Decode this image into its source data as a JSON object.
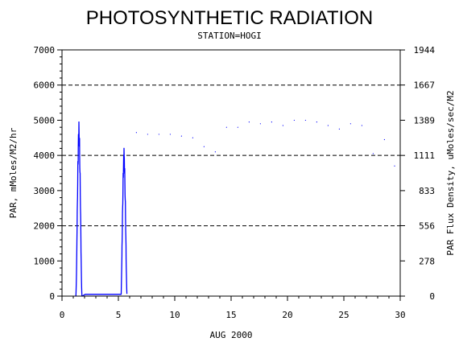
{
  "chart_data": {
    "type": "line",
    "title": "PHOTOSYNTHETIC RADIATION",
    "subtitle": "STATION=HOGI",
    "xlabel": "AUG 2000",
    "ylabel": "PAR, mMoles/M2/hr",
    "ylabel_right": "PAR Flux Density, uMoles/sec/M2",
    "xlim": [
      0,
      30
    ],
    "ylim": [
      0,
      7000
    ],
    "x_ticks": [
      0,
      5,
      10,
      15,
      20,
      25,
      30
    ],
    "x_tick_labels": [
      "0",
      "5",
      "10",
      "15",
      "20",
      "25",
      "30"
    ],
    "y_ticks": [
      0,
      1000,
      2000,
      3000,
      4000,
      5000,
      6000,
      7000
    ],
    "y_tick_labels": [
      "0",
      "1000",
      "2000",
      "3000",
      "4000",
      "5000",
      "6000",
      "7000"
    ],
    "y2_ticks": [
      0,
      278,
      556,
      833,
      1111,
      1389,
      1667,
      1944
    ],
    "y2_tick_labels": [
      "0",
      "278",
      "556",
      "833",
      "1111",
      "1389",
      "1667",
      "1944"
    ],
    "y2_scale": "uMoles/sec/M2 = mMoles/M2/hr / 3.6",
    "reference_lines": [
      2000,
      4000,
      6000
    ],
    "reference_line_style": "dashed",
    "series": [
      {
        "color": "#0000ff",
        "daily_peaks": [
          {
            "day": 1.5,
            "peak": 4950
          },
          {
            "day": 5.5,
            "peak": 4200
          },
          {
            "day": 6.6,
            "peak": 4650
          },
          {
            "day": 7.6,
            "peak": 4600
          },
          {
            "day": 8.6,
            "peak": 4600
          },
          {
            "day": 9.6,
            "peak": 4600
          },
          {
            "day": 10.6,
            "peak": 4550
          },
          {
            "day": 11.6,
            "peak": 4500
          },
          {
            "day": 12.6,
            "peak": 4250
          },
          {
            "day": 13.6,
            "peak": 4100
          },
          {
            "day": 14.6,
            "peak": 4800
          },
          {
            "day": 15.6,
            "peak": 4800
          },
          {
            "day": 16.6,
            "peak": 4950
          },
          {
            "day": 17.6,
            "peak": 4900
          },
          {
            "day": 18.6,
            "peak": 4950
          },
          {
            "day": 19.6,
            "peak": 4850
          },
          {
            "day": 20.6,
            "peak": 5000
          },
          {
            "day": 21.6,
            "peak": 5000
          },
          {
            "day": 22.6,
            "peak": 4950
          },
          {
            "day": 23.6,
            "peak": 4850
          },
          {
            "day": 24.6,
            "peak": 4750
          },
          {
            "day": 25.6,
            "peak": 4900
          },
          {
            "day": 26.6,
            "peak": 4850
          },
          {
            "day": 27.6,
            "peak": 4050
          },
          {
            "day": 28.6,
            "peak": 4450
          },
          {
            "day": 29.5,
            "peak": 3700
          }
        ],
        "no_data_gap": [
          2.0,
          5.3
        ],
        "gap_level": 50
      }
    ]
  }
}
